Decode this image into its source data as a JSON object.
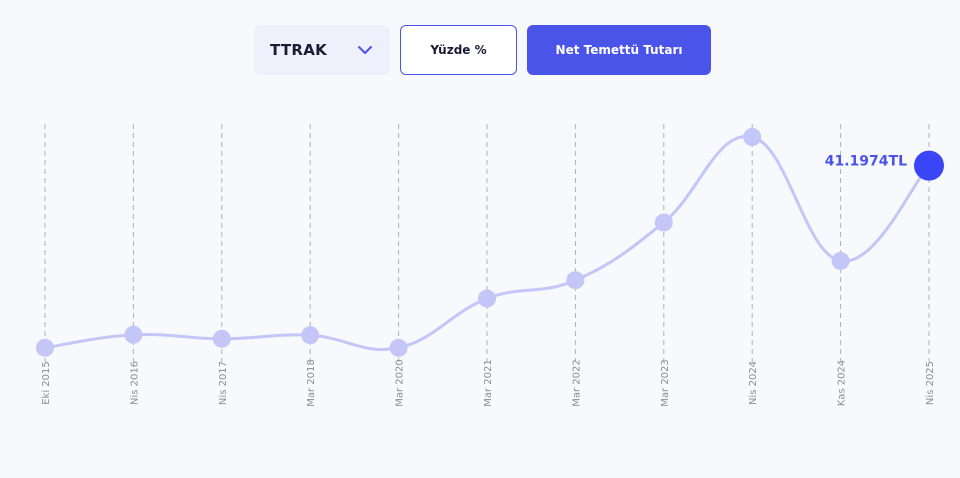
{
  "controls": {
    "ticker": "TTRAK",
    "percent_label": "Yüzde %",
    "net_label": "Net Temettü Tutarı"
  },
  "colors": {
    "line": "#c3c6f7",
    "point": "#c3c6f7",
    "highlight": "#3a45f5",
    "highlight_label": "#4a54e8",
    "grid": "#b0b0b8",
    "tick_label": "#8c8c95",
    "accent": "#4a54e8"
  },
  "chart_data": {
    "type": "line",
    "categories": [
      "Eki 2015",
      "Nis 2016",
      "Nis 2017",
      "Mar 2018",
      "Mar 2020",
      "Mar 2021",
      "Mar 2022",
      "Mar 2023",
      "Nis 2024",
      "Kas 2024",
      "Nis 2025"
    ],
    "values": [
      0.5,
      3.4,
      2.5,
      3.3,
      0.5,
      11.5,
      15.6,
      28.5,
      47.6,
      19.9,
      41.1974
    ],
    "ylim": [
      0,
      50
    ],
    "highlight_index": 10,
    "highlight_label": "41.1974TL",
    "grid": "vertical-dashed",
    "legend": "none"
  }
}
